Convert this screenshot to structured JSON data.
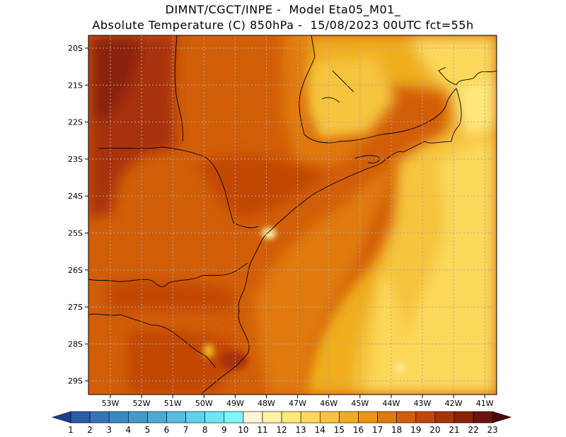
{
  "title": {
    "line1": "DIMNT/CGCT/INPE -  Model Eta05_M01_",
    "line2": "Absolute Temperature (C) 850hPa -  15/08/2023 00UTC fct=55h"
  },
  "map": {
    "lat_labels": [
      "20S",
      "21S",
      "22S",
      "23S",
      "24S",
      "25S",
      "26S",
      "27S",
      "28S",
      "29S"
    ],
    "lon_labels": [
      "53W",
      "52W",
      "51W",
      "50W",
      "49W",
      "48W",
      "47W",
      "46W",
      "45W",
      "44W",
      "43W",
      "42W",
      "41W"
    ],
    "grid": "dotted"
  },
  "colorbar": {
    "labels": [
      "1",
      "2",
      "3",
      "4",
      "5",
      "6",
      "7",
      "8",
      "9",
      "10",
      "11",
      "12",
      "13",
      "14",
      "15",
      "16",
      "17",
      "18",
      "19",
      "20",
      "21",
      "22",
      "23"
    ],
    "colors": [
      "#1f3d8f",
      "#2a5ca8",
      "#3474b4",
      "#3b88c0",
      "#4499c8",
      "#4caad0",
      "#55bde0",
      "#5ed2ec",
      "#6ae6f4",
      "#7af8ff",
      "#fff6d6",
      "#fff2a8",
      "#ffe87a",
      "#fcd85a",
      "#f6c43e",
      "#f0ad1e",
      "#ea9612",
      "#e07a0a",
      "#d25e08",
      "#c24605",
      "#a83308",
      "#8a2208",
      "#6d1212",
      "#4a0a0a"
    ]
  }
}
